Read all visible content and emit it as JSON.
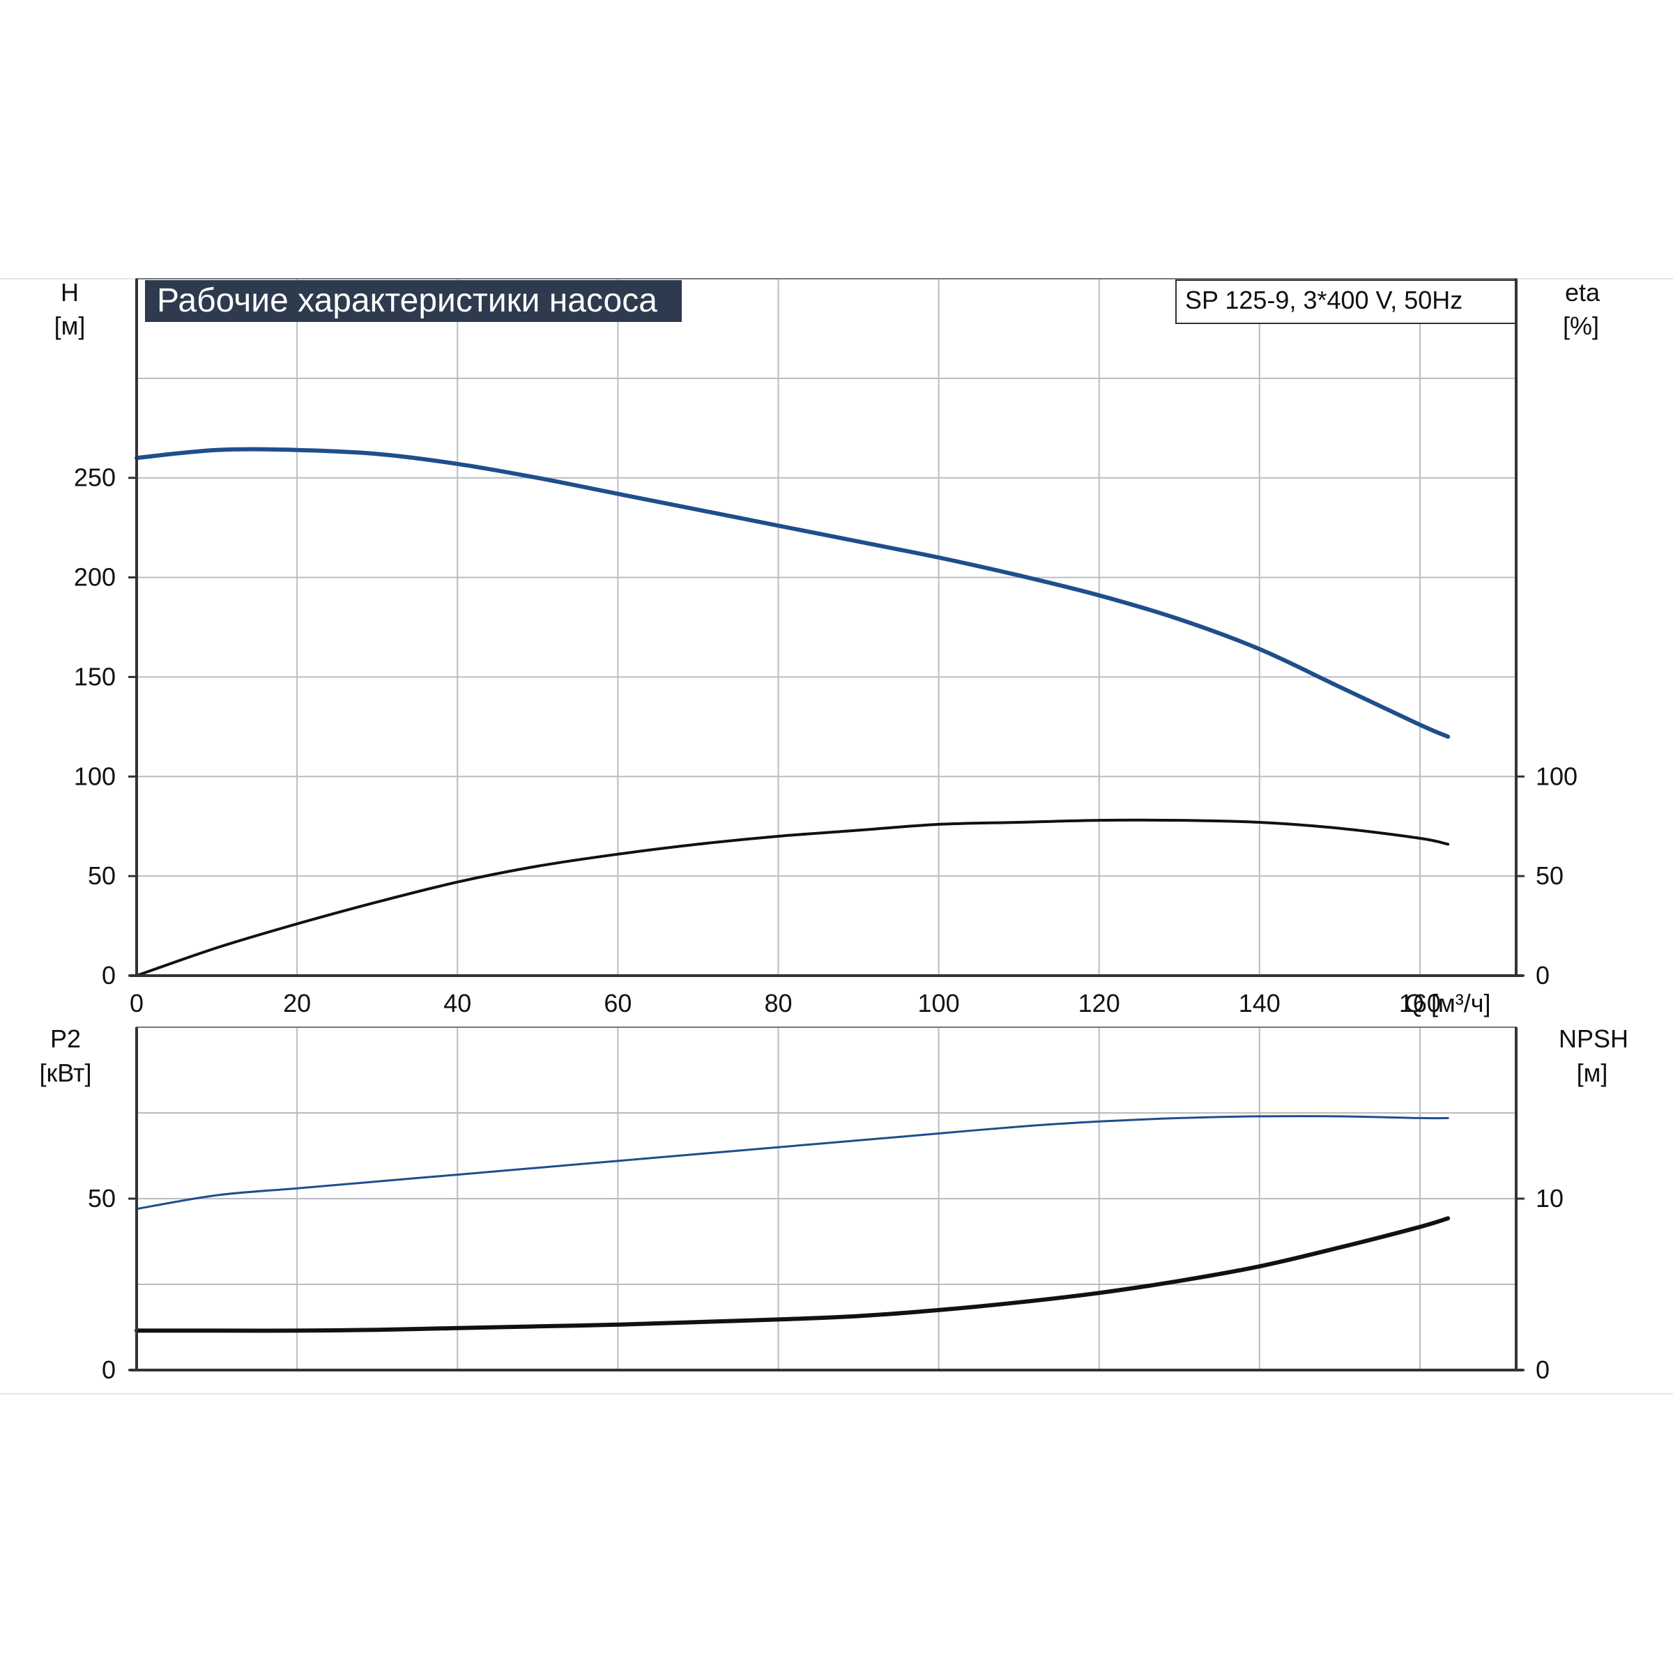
{
  "title": "Рабочие характеристики насоса",
  "model_label": "SP 125-9, 3*400 V, 50Hz",
  "colors": {
    "title_bg": "#2e3a4e",
    "grid": "#b9bcc0",
    "axis": "#333333",
    "blue_curve": "#1f4e8c",
    "black_curve": "#111111"
  },
  "chart_data": [
    {
      "type": "line",
      "panel": "top",
      "xlabel": "Q [м³/ч]",
      "x_ticks": [
        0,
        20,
        40,
        60,
        80,
        100,
        120,
        140,
        160
      ],
      "xlim": [
        0,
        172
      ],
      "left_axis": {
        "label_line1": "H",
        "label_line2": "[м]",
        "ticks": [
          0,
          50,
          100,
          150,
          200,
          250
        ],
        "ylim": [
          0,
          350
        ]
      },
      "right_axis": {
        "label_line1": "eta",
        "label_line2": "[%]",
        "ticks": [
          0,
          50,
          100
        ],
        "ylim": [
          0,
          350
        ]
      },
      "grid": true,
      "series": [
        {
          "axis": "left",
          "color": "#1f4e8c",
          "points": [
            [
              0,
              260
            ],
            [
              10,
              264
            ],
            [
              20,
              264
            ],
            [
              30,
              262
            ],
            [
              40,
              257
            ],
            [
              50,
              250
            ],
            [
              60,
              242
            ],
            [
              70,
              234
            ],
            [
              80,
              226
            ],
            [
              90,
              218
            ],
            [
              100,
              210
            ],
            [
              110,
              201
            ],
            [
              120,
              191
            ],
            [
              130,
              179
            ],
            [
              140,
              164
            ],
            [
              150,
              145
            ],
            [
              160,
              126
            ],
            [
              163.5,
              120
            ]
          ]
        },
        {
          "axis": "right",
          "color": "#111111",
          "points": [
            [
              0,
              0
            ],
            [
              10,
              14
            ],
            [
              20,
              26
            ],
            [
              30,
              37
            ],
            [
              40,
              47
            ],
            [
              50,
              55
            ],
            [
              60,
              61
            ],
            [
              70,
              66
            ],
            [
              80,
              70
            ],
            [
              90,
              73
            ],
            [
              100,
              76
            ],
            [
              110,
              77
            ],
            [
              120,
              78
            ],
            [
              130,
              78
            ],
            [
              140,
              77
            ],
            [
              150,
              74
            ],
            [
              160,
              69
            ],
            [
              163.5,
              66
            ]
          ]
        }
      ]
    },
    {
      "type": "line",
      "panel": "bottom",
      "xlim": [
        0,
        172
      ],
      "left_axis": {
        "label_line1": "P2",
        "label_line2": "[кВт]",
        "ticks": [
          0,
          50
        ],
        "ylim": [
          0,
          100
        ]
      },
      "right_axis": {
        "label_line1": "NPSH",
        "label_line2": "[м]",
        "ticks": [
          0,
          10
        ],
        "ylim": [
          0,
          20
        ]
      },
      "grid": true,
      "series": [
        {
          "axis": "left",
          "color": "#1f4e8c",
          "points": [
            [
              0,
              47
            ],
            [
              10,
              51
            ],
            [
              20,
              53
            ],
            [
              30,
              55
            ],
            [
              40,
              57
            ],
            [
              50,
              59
            ],
            [
              60,
              61
            ],
            [
              70,
              63
            ],
            [
              80,
              65
            ],
            [
              90,
              67
            ],
            [
              100,
              69
            ],
            [
              110,
              71
            ],
            [
              120,
              72.5
            ],
            [
              130,
              73.5
            ],
            [
              140,
              74
            ],
            [
              150,
              74
            ],
            [
              160,
              73.5
            ],
            [
              163.5,
              73.5
            ]
          ]
        },
        {
          "axis": "right",
          "color": "#111111",
          "points": [
            [
              0,
              2.3
            ],
            [
              10,
              2.3
            ],
            [
              20,
              2.3
            ],
            [
              30,
              2.35
            ],
            [
              40,
              2.45
            ],
            [
              50,
              2.55
            ],
            [
              60,
              2.65
            ],
            [
              70,
              2.8
            ],
            [
              80,
              2.95
            ],
            [
              90,
              3.15
            ],
            [
              100,
              3.5
            ],
            [
              110,
              3.95
            ],
            [
              120,
              4.5
            ],
            [
              130,
              5.2
            ],
            [
              140,
              6.05
            ],
            [
              150,
              7.15
            ],
            [
              160,
              8.35
            ],
            [
              163.5,
              8.85
            ]
          ]
        }
      ]
    }
  ]
}
